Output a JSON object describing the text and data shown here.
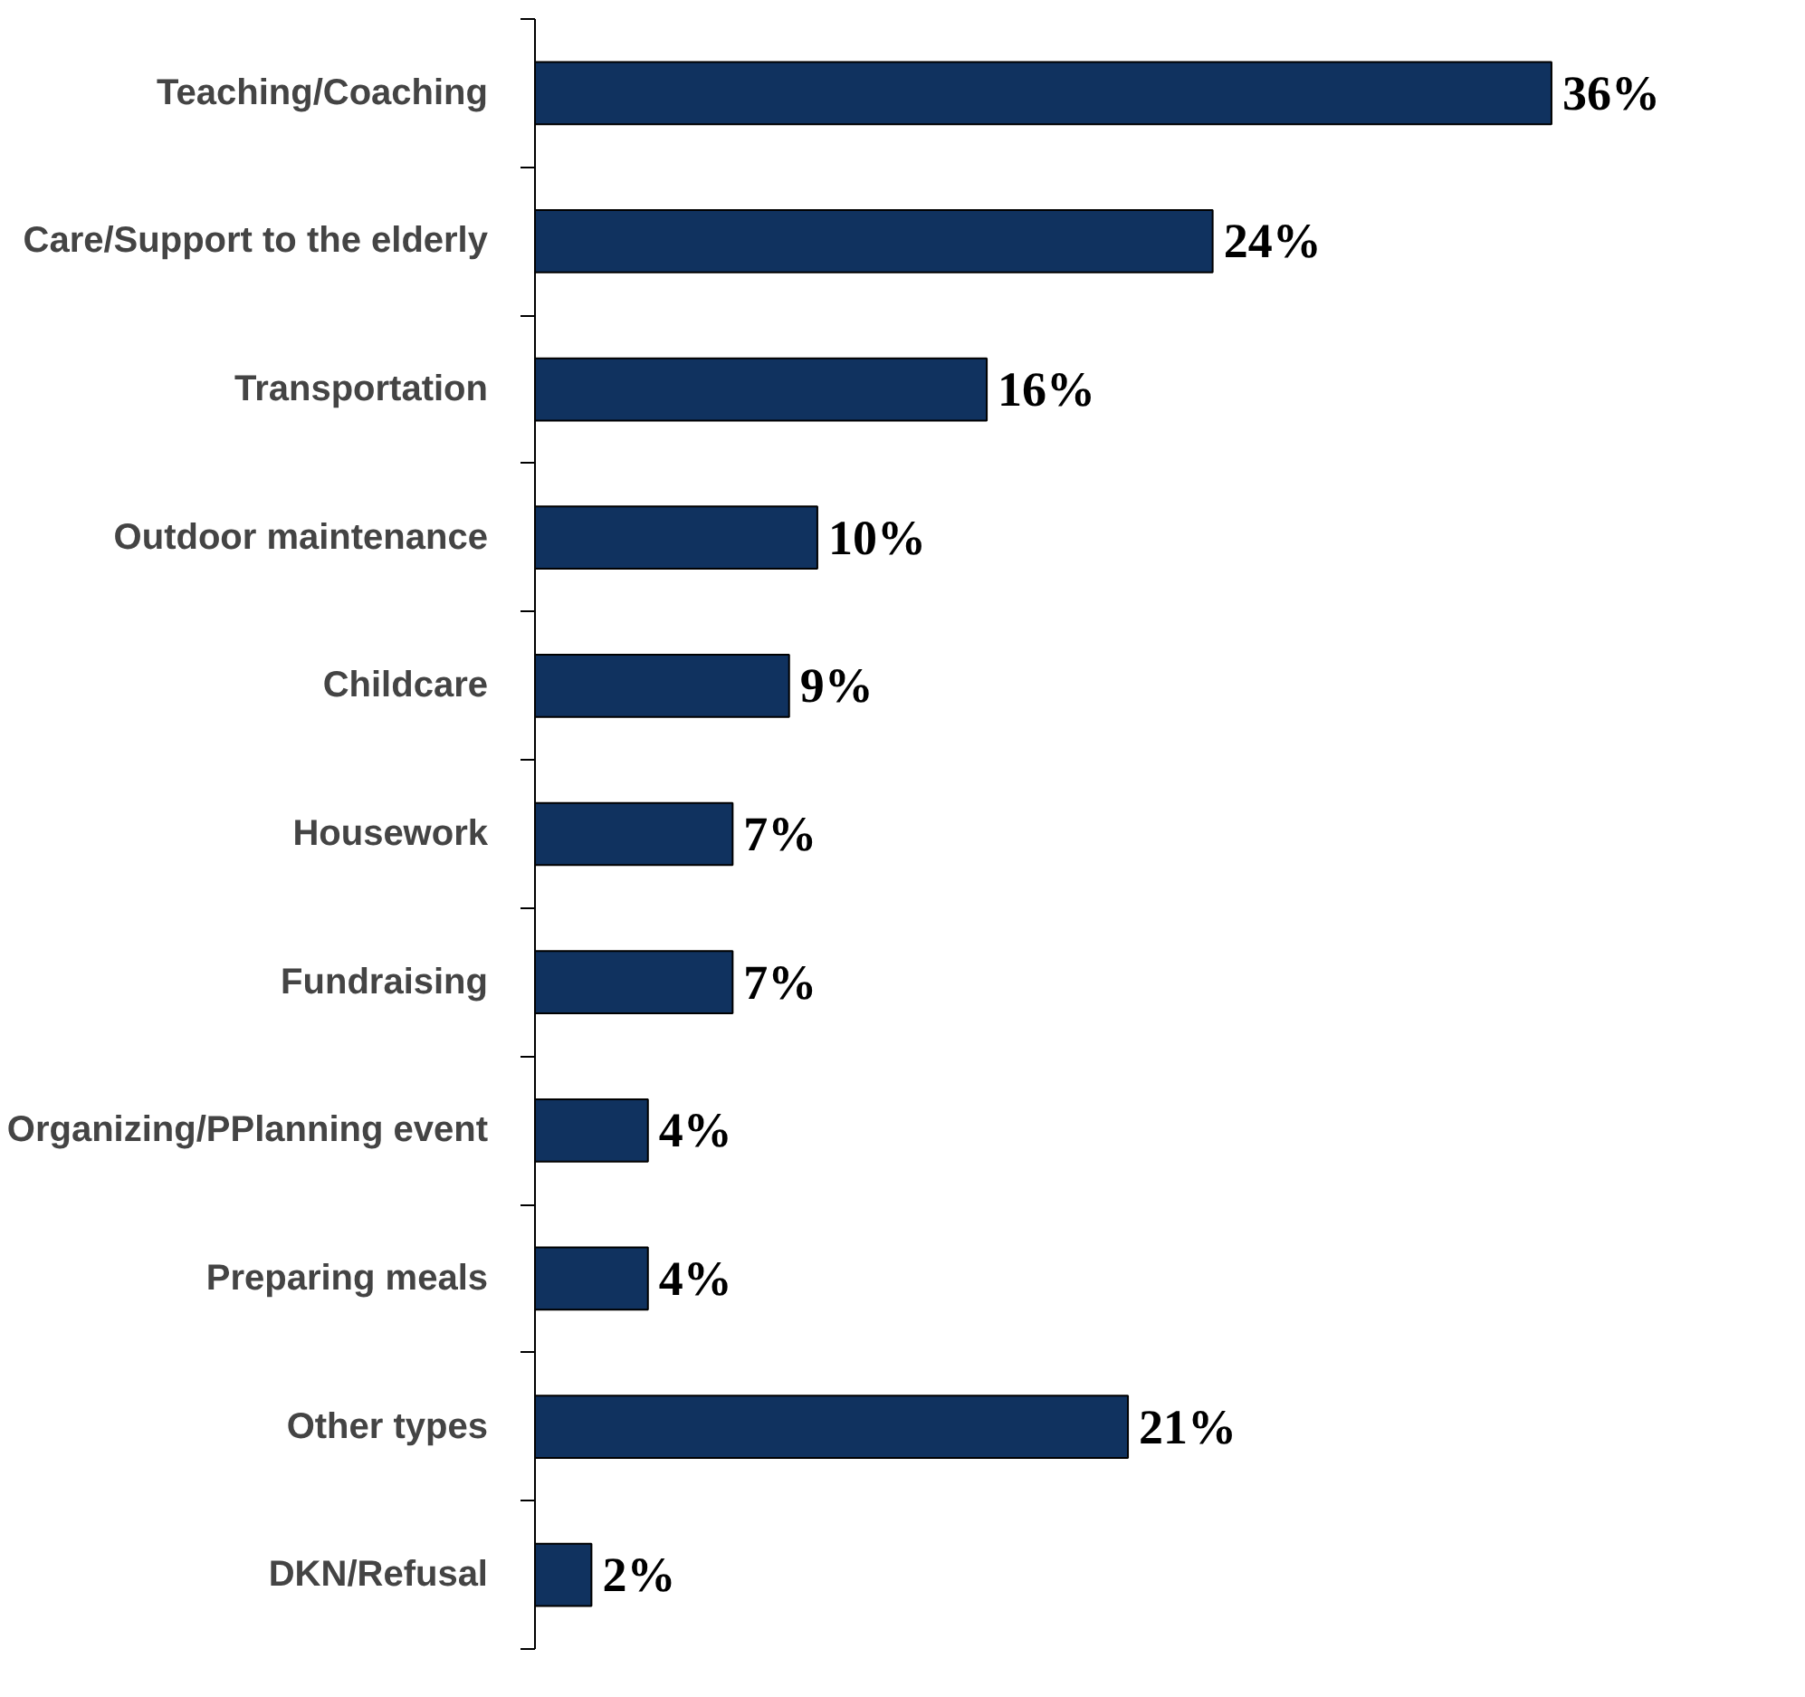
{
  "chart_data": {
    "type": "bar",
    "orientation": "horizontal",
    "categories": [
      "Teaching/Coaching",
      "Care/Support to the elderly",
      "Transportation",
      "Outdoor maintenance",
      "Childcare",
      "Housework",
      "Fundraising",
      "Organizing/PPlanning event",
      "Preparing meals",
      "Other types",
      "DKN/Refusal"
    ],
    "values": [
      36,
      24,
      16,
      10,
      9,
      7,
      7,
      4,
      4,
      21,
      2
    ],
    "value_labels": [
      "36%",
      "24%",
      "16%",
      "10%",
      "9%",
      "7%",
      "7%",
      "4%",
      "4%",
      "21%",
      "2%"
    ],
    "color": "#10325f"
  }
}
